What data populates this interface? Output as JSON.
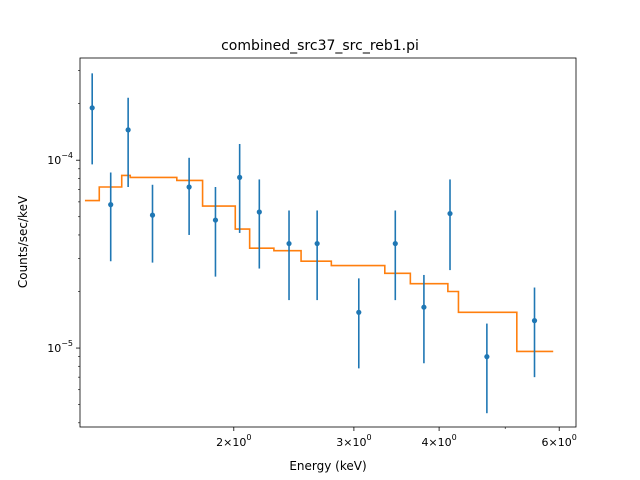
{
  "chart_data": {
    "type": "scatter",
    "title": "combined_src37_src_reb1.pi",
    "xlabel": "Energy (keV)",
    "ylabel": "Counts/sec/keV",
    "xscale": "log",
    "yscale": "log",
    "xlim": [
      1.19,
      6.35
    ],
    "ylim": [
      3.8e-06,
      0.00035
    ],
    "x_ticks": [
      {
        "value": 2,
        "base": "2×10",
        "exp": "0"
      },
      {
        "value": 3,
        "base": "3×10",
        "exp": "0"
      },
      {
        "value": 4,
        "base": "4×10",
        "exp": "0"
      },
      {
        "value": 6,
        "base": "6×10",
        "exp": "0"
      }
    ],
    "y_ticks": [
      {
        "value": 0.0001,
        "base": "10",
        "exp": "−4"
      },
      {
        "value": 1e-05,
        "base": "10",
        "exp": "−5"
      }
    ],
    "grid": false,
    "series": [
      {
        "kind": "errorbar",
        "color": "#1f77b4",
        "points": [
          {
            "x": 1.24,
            "y": 0.00019,
            "ylo": 9.5e-05,
            "yhi": 0.00029
          },
          {
            "x": 1.32,
            "y": 5.8e-05,
            "ylo": 2.9e-05,
            "yhi": 8.6e-05
          },
          {
            "x": 1.4,
            "y": 0.000145,
            "ylo": 7.2e-05,
            "yhi": 0.000215
          },
          {
            "x": 1.52,
            "y": 5.1e-05,
            "ylo": 2.85e-05,
            "yhi": 7.4e-05
          },
          {
            "x": 1.72,
            "y": 7.2e-05,
            "ylo": 4e-05,
            "yhi": 0.000103
          },
          {
            "x": 1.88,
            "y": 4.8e-05,
            "ylo": 2.4e-05,
            "yhi": 7.2e-05
          },
          {
            "x": 2.04,
            "y": 8.1e-05,
            "ylo": 4.1e-05,
            "yhi": 0.000122
          },
          {
            "x": 2.18,
            "y": 5.3e-05,
            "ylo": 2.65e-05,
            "yhi": 7.9e-05
          },
          {
            "x": 2.41,
            "y": 3.6e-05,
            "ylo": 1.8e-05,
            "yhi": 5.4e-05
          },
          {
            "x": 2.65,
            "y": 3.6e-05,
            "ylo": 1.8e-05,
            "yhi": 5.4e-05
          },
          {
            "x": 3.05,
            "y": 1.55e-05,
            "ylo": 7.8e-06,
            "yhi": 2.35e-05
          },
          {
            "x": 3.45,
            "y": 3.6e-05,
            "ylo": 1.8e-05,
            "yhi": 5.4e-05
          },
          {
            "x": 3.8,
            "y": 1.65e-05,
            "ylo": 8.3e-06,
            "yhi": 2.45e-05
          },
          {
            "x": 4.15,
            "y": 5.2e-05,
            "ylo": 2.6e-05,
            "yhi": 7.9e-05
          },
          {
            "x": 4.7,
            "y": 9e-06,
            "ylo": 4.5e-06,
            "yhi": 1.35e-05
          },
          {
            "x": 5.52,
            "y": 1.4e-05,
            "ylo": 7e-06,
            "yhi": 2.1e-05
          }
        ]
      },
      {
        "kind": "step",
        "color": "#ff7f0e",
        "steps": [
          {
            "x0": 1.21,
            "x1": 1.27,
            "y": 6.1e-05
          },
          {
            "x0": 1.27,
            "x1": 1.37,
            "y": 7.2e-05
          },
          {
            "x0": 1.37,
            "x1": 1.41,
            "y": 8.3e-05
          },
          {
            "x0": 1.41,
            "x1": 1.65,
            "y": 8.1e-05
          },
          {
            "x0": 1.65,
            "x1": 1.8,
            "y": 7.8e-05
          },
          {
            "x0": 1.8,
            "x1": 2.01,
            "y": 5.7e-05
          },
          {
            "x0": 2.01,
            "x1": 2.11,
            "y": 4.3e-05
          },
          {
            "x0": 2.11,
            "x1": 2.29,
            "y": 3.4e-05
          },
          {
            "x0": 2.29,
            "x1": 2.51,
            "y": 3.3e-05
          },
          {
            "x0": 2.51,
            "x1": 2.78,
            "y": 2.9e-05
          },
          {
            "x0": 2.78,
            "x1": 3.33,
            "y": 2.75e-05
          },
          {
            "x0": 3.33,
            "x1": 3.63,
            "y": 2.5e-05
          },
          {
            "x0": 3.63,
            "x1": 4.12,
            "y": 2.2e-05
          },
          {
            "x0": 4.12,
            "x1": 4.27,
            "y": 2e-05
          },
          {
            "x0": 4.27,
            "x1": 5.2,
            "y": 1.55e-05
          },
          {
            "x0": 5.2,
            "x1": 5.88,
            "y": 9.6e-06
          }
        ]
      }
    ]
  }
}
